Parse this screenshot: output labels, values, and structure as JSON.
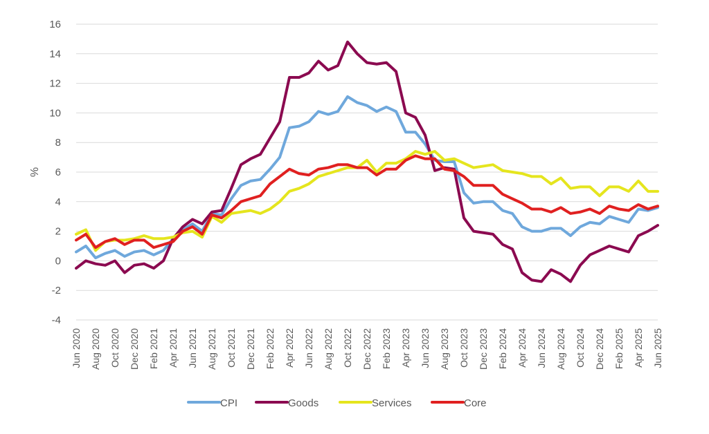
{
  "chart_data": {
    "type": "line",
    "title": "",
    "xlabel": "",
    "ylabel": "%",
    "ylim": [
      -4,
      16
    ],
    "yticks": [
      -4,
      -2,
      0,
      2,
      4,
      6,
      8,
      10,
      12,
      14,
      16
    ],
    "grid": true,
    "legend": "bottom",
    "x_start": "Jun 2020",
    "x_tick_labels": [
      "Jun 2020",
      "Aug 2020",
      "Oct 2020",
      "Dec 2020",
      "Feb 2021",
      "Apr 2021",
      "Jun 2021",
      "Aug 2021",
      "Oct 2021",
      "Dec 2021",
      "Feb 2022",
      "Apr 2022",
      "Jun 2022",
      "Aug 2022",
      "Oct 2022",
      "Dec 2022",
      "Feb 2023",
      "Apr 2023",
      "Jun 2023",
      "Aug 2023",
      "Oct 2023",
      "Dec 2023",
      "Feb 2024",
      "Apr 2024",
      "Jun 2024",
      "Aug 2024",
      "Oct 2024",
      "Dec 2024",
      "Feb 2025",
      "Apr 2025",
      "Jun 2025"
    ],
    "series": [
      {
        "name": "CPI",
        "color": "#6fa8dc",
        "values": [
          0.6,
          1.0,
          0.2,
          0.5,
          0.7,
          0.3,
          0.6,
          0.7,
          0.4,
          0.7,
          1.5,
          2.1,
          2.5,
          2.0,
          3.2,
          3.1,
          4.2,
          5.1,
          5.4,
          5.5,
          6.2,
          7.0,
          9.0,
          9.1,
          9.4,
          10.1,
          9.9,
          10.1,
          11.1,
          10.7,
          10.5,
          10.1,
          10.4,
          10.1,
          8.7,
          8.7,
          7.9,
          6.8,
          6.7,
          6.7,
          4.6,
          3.9,
          4.0,
          4.0,
          3.4,
          3.2,
          2.3,
          2.0,
          2.0,
          2.2,
          2.2,
          1.7,
          2.3,
          2.6,
          2.5,
          3.0,
          2.8,
          2.6,
          3.5,
          3.4,
          3.6
        ]
      },
      {
        "name": "Goods",
        "color": "#8b0a50",
        "values": [
          -0.5,
          0.0,
          -0.2,
          -0.3,
          0.0,
          -0.8,
          -0.3,
          -0.2,
          -0.5,
          0.0,
          1.5,
          2.3,
          2.8,
          2.5,
          3.3,
          3.4,
          4.9,
          6.5,
          6.9,
          7.2,
          8.3,
          9.4,
          12.4,
          12.4,
          12.7,
          13.5,
          12.9,
          13.2,
          14.8,
          14.0,
          13.4,
          13.3,
          13.4,
          12.8,
          10.0,
          9.7,
          8.5,
          6.1,
          6.3,
          6.2,
          2.9,
          2.0,
          1.9,
          1.8,
          1.1,
          0.8,
          -0.8,
          -1.3,
          -1.4,
          -0.6,
          -0.9,
          -1.4,
          -0.3,
          0.4,
          0.7,
          1.0,
          0.8,
          0.6,
          1.7,
          2.0,
          2.4
        ]
      },
      {
        "name": "Services",
        "color": "#e5e51e",
        "values": [
          1.8,
          2.1,
          0.7,
          1.3,
          1.4,
          1.4,
          1.5,
          1.7,
          1.5,
          1.5,
          1.6,
          1.9,
          2.0,
          1.6,
          3.0,
          2.6,
          3.2,
          3.3,
          3.4,
          3.2,
          3.5,
          4.0,
          4.7,
          4.9,
          5.2,
          5.7,
          5.9,
          6.1,
          6.3,
          6.3,
          6.8,
          6.0,
          6.6,
          6.6,
          6.9,
          7.4,
          7.2,
          7.4,
          6.8,
          6.9,
          6.6,
          6.3,
          6.4,
          6.5,
          6.1,
          6.0,
          5.9,
          5.7,
          5.7,
          5.2,
          5.6,
          4.9,
          5.0,
          5.0,
          4.4,
          5.0,
          5.0,
          4.7,
          5.4,
          4.7,
          4.7
        ]
      },
      {
        "name": "Core",
        "color": "#e02020",
        "values": [
          1.4,
          1.8,
          0.9,
          1.3,
          1.5,
          1.1,
          1.4,
          1.4,
          0.9,
          1.1,
          1.3,
          2.0,
          2.3,
          1.8,
          3.1,
          2.9,
          3.4,
          4.0,
          4.2,
          4.4,
          5.2,
          5.7,
          6.2,
          5.9,
          5.8,
          6.2,
          6.3,
          6.5,
          6.5,
          6.3,
          6.3,
          5.8,
          6.2,
          6.2,
          6.8,
          7.1,
          6.9,
          6.9,
          6.2,
          6.1,
          5.7,
          5.1,
          5.1,
          5.1,
          4.5,
          4.2,
          3.9,
          3.5,
          3.5,
          3.3,
          3.6,
          3.2,
          3.3,
          3.5,
          3.2,
          3.7,
          3.5,
          3.4,
          3.8,
          3.5,
          3.7
        ]
      }
    ]
  }
}
